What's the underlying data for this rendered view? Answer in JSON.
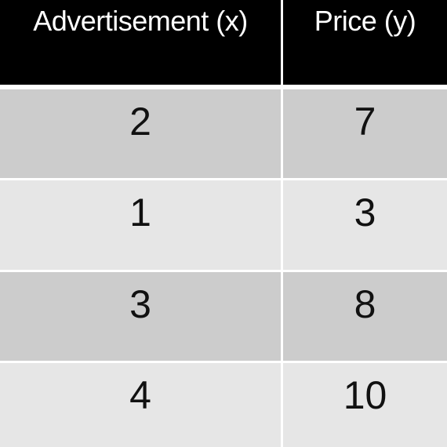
{
  "chart_data": {
    "type": "table",
    "columns": [
      "Advertisement (x)",
      "Price (y)"
    ],
    "rows": [
      {
        "x": 2,
        "y": 7
      },
      {
        "x": 1,
        "y": 3
      },
      {
        "x": 3,
        "y": 8
      },
      {
        "x": 4,
        "y": 10
      }
    ]
  },
  "colors": {
    "header_bg": "#000000",
    "header_text": "#ffffff",
    "row_dark": "#cccccc",
    "row_light": "#e6e6e6",
    "divider": "#ffffff"
  }
}
